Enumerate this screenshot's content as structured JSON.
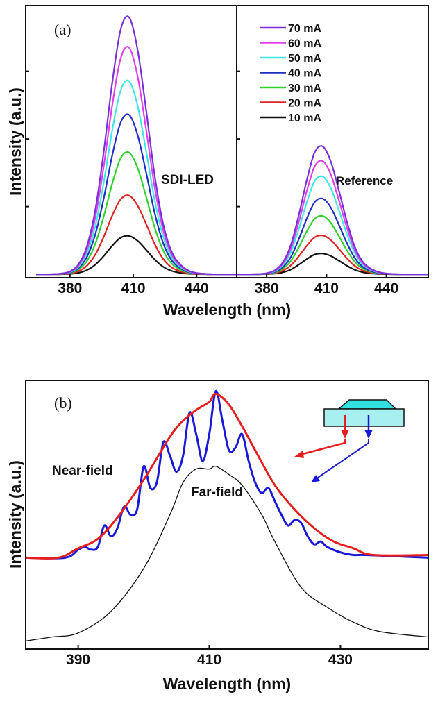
{
  "chart_data": [
    {
      "type": "line",
      "panel_label": "(a)",
      "xlabel": "Wavelength (nm)",
      "ylabel": "Intensity (a.u.)",
      "subplots": [
        {
          "annotation": "SDI-LED",
          "xlim": [
            359,
            459
          ],
          "xticks": [
            380,
            410,
            440
          ],
          "ylim": [
            -0.05,
            3.97
          ],
          "yticks": [
            1,
            2,
            3
          ],
          "x": [
            364,
            368,
            372,
            376,
            380,
            384,
            388,
            392,
            396,
            400,
            404,
            408,
            412,
            416,
            420,
            424,
            428,
            432,
            436,
            440,
            444,
            448,
            452,
            456,
            459
          ],
          "profile": [
            0,
            0.0001,
            0.0005,
            0.003,
            0.011,
            0.038,
            0.108,
            0.249,
            0.474,
            0.739,
            0.946,
            0.994,
            0.87,
            0.64,
            0.39,
            0.2,
            0.09,
            0.04,
            0.015,
            0.005,
            0.002,
            0,
            0,
            0,
            0
          ],
          "series": [
            {
              "name": "70 mA",
              "peak": 3.82
            },
            {
              "name": "60 mA",
              "peak": 3.37
            },
            {
              "name": "50 mA",
              "peak": 2.87
            },
            {
              "name": "40 mA",
              "peak": 2.37
            },
            {
              "name": "30 mA",
              "peak": 1.81
            },
            {
              "name": "20 mA",
              "peak": 1.17
            },
            {
              "name": "10 mA",
              "peak": 0.57
            }
          ]
        },
        {
          "annotation": "Reference",
          "xlim": [
            365,
            461
          ],
          "xticks": [
            380,
            410,
            440
          ],
          "ylim": [
            -0.05,
            3.97
          ],
          "yticks": [
            1,
            2,
            3
          ],
          "x": [
            365,
            368,
            372,
            376,
            380,
            384,
            388,
            392,
            396,
            400,
            404,
            408,
            412,
            416,
            420,
            424,
            428,
            432,
            436,
            440,
            444,
            448,
            452,
            456,
            461
          ],
          "profile": [
            0,
            0,
            0.0003,
            0.002,
            0.008,
            0.03,
            0.09,
            0.22,
            0.45,
            0.72,
            0.94,
            0.99,
            0.88,
            0.66,
            0.42,
            0.22,
            0.1,
            0.045,
            0.018,
            0.006,
            0.002,
            0,
            0,
            0,
            0
          ],
          "series": [
            {
              "name": "70 mA",
              "peak": 1.91
            },
            {
              "name": "60 mA",
              "peak": 1.69
            },
            {
              "name": "50 mA",
              "peak": 1.46
            },
            {
              "name": "40 mA",
              "peak": 1.13
            },
            {
              "name": "30 mA",
              "peak": 0.87
            },
            {
              "name": "20 mA",
              "peak": 0.58
            },
            {
              "name": "10 mA",
              "peak": 0.31
            }
          ]
        }
      ],
      "legend": {
        "placement": "top-right",
        "entries": [
          {
            "label": "70 mA",
            "color": "#7b2fd6"
          },
          {
            "label": "60 mA",
            "color": "#e040e8"
          },
          {
            "label": "50 mA",
            "color": "#3fe6e6"
          },
          {
            "label": "40 mA",
            "color": "#1f2fc0"
          },
          {
            "label": "30 mA",
            "color": "#33d12e"
          },
          {
            "label": "20 mA",
            "color": "#e02424"
          },
          {
            "label": "10 mA",
            "color": "#111111"
          }
        ]
      }
    },
    {
      "type": "line",
      "panel_label": "(b)",
      "xlabel": "Wavelength (nm)",
      "ylabel": "Intensity (a.u.)",
      "xlim": [
        382,
        443.4
      ],
      "xticks": [
        390,
        410,
        430
      ],
      "ylim": [
        0,
        1
      ],
      "annotations": [
        "Near-field",
        "Far-field"
      ],
      "series": [
        {
          "name": "Near-field (blue)",
          "color": "#1a1ad6",
          "x": [
            382,
            388,
            390,
            391,
            392,
            393,
            394,
            395,
            396,
            397,
            398,
            399,
            400,
            401,
            402,
            403,
            404,
            405,
            406,
            407,
            408,
            409,
            410,
            411,
            412,
            413,
            414,
            415,
            416,
            417,
            418,
            419,
            420,
            421,
            422,
            423,
            424,
            425,
            426,
            427,
            428,
            430,
            432,
            434,
            443.4
          ],
          "y": [
            0.34,
            0.34,
            0.37,
            0.38,
            0.37,
            0.38,
            0.46,
            0.42,
            0.45,
            0.53,
            0.5,
            0.52,
            0.68,
            0.6,
            0.62,
            0.77,
            0.72,
            0.66,
            0.72,
            0.88,
            0.8,
            0.7,
            0.8,
            0.96,
            0.85,
            0.74,
            0.75,
            0.8,
            0.7,
            0.62,
            0.58,
            0.6,
            0.55,
            0.5,
            0.46,
            0.48,
            0.47,
            0.42,
            0.39,
            0.4,
            0.38,
            0.36,
            0.35,
            0.35,
            0.34
          ]
        },
        {
          "name": "Near-field (red)",
          "color": "#e61e1e",
          "x": [
            382,
            387,
            390,
            393,
            396,
            400,
            404,
            406,
            408,
            410,
            411,
            413,
            415,
            417,
            420,
            423,
            426,
            429,
            432,
            435,
            443.4
          ],
          "y": [
            0.34,
            0.34,
            0.375,
            0.41,
            0.49,
            0.63,
            0.79,
            0.85,
            0.89,
            0.92,
            0.95,
            0.91,
            0.83,
            0.74,
            0.61,
            0.52,
            0.45,
            0.4,
            0.375,
            0.35,
            0.35
          ]
        },
        {
          "name": "Far-field",
          "color": "#111111",
          "x": [
            382,
            386,
            390,
            395,
            400,
            404,
            406,
            408,
            410,
            411,
            413,
            415,
            418,
            420,
            424,
            428,
            432,
            436,
            443.4
          ],
          "y": [
            0.03,
            0.045,
            0.06,
            0.14,
            0.3,
            0.5,
            0.62,
            0.67,
            0.67,
            0.68,
            0.65,
            0.61,
            0.5,
            0.4,
            0.23,
            0.155,
            0.1,
            0.065,
            0.045
          ]
        }
      ],
      "inset": {
        "top_color": "#33e0e0",
        "substrate_color": "#a8f0f0",
        "arrow_colors": [
          "#e61e1e",
          "#1a1ad6"
        ]
      }
    }
  ]
}
